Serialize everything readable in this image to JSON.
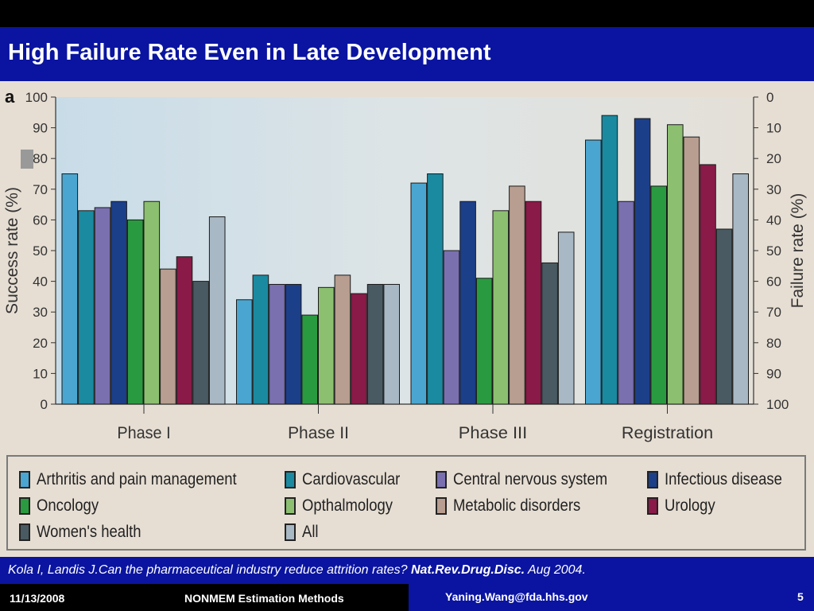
{
  "slide": {
    "title": "High Failure Rate Even in Late Development",
    "citation_text": "Kola I, Landis J.Can the pharmaceutical industry reduce attrition rates? ",
    "citation_journal": "Nat.Rev.Drug.Disc.",
    "citation_date": " Aug 2004.",
    "footer_date": "11/13/2008",
    "footer_title": "NONMEM Estimation Methods",
    "footer_email": "Yaning.Wang@fda.hhs.gov",
    "footer_page": "5"
  },
  "chart_data": {
    "type": "bar",
    "panel_label": "a",
    "ylabel": "Success rate (%)",
    "ylabel_right": "Failure rate (%)",
    "ylim": [
      0,
      100
    ],
    "yticks": [
      "0",
      "10",
      "20",
      "30",
      "40",
      "50",
      "60",
      "70",
      "80",
      "90",
      "100"
    ],
    "yticks_right": [
      "100",
      "90",
      "80",
      "70",
      "60",
      "50",
      "40",
      "30",
      "20",
      "10",
      "0"
    ],
    "categories": [
      "Phase I",
      "Phase II",
      "Phase III",
      "Registration"
    ],
    "legend_placement": "bottom",
    "series": [
      {
        "name": "Arthritis and pain management",
        "color": "#4aa6d0",
        "values": [
          75,
          34,
          72,
          86
        ]
      },
      {
        "name": "Cardiovascular",
        "color": "#1a8aa0",
        "values": [
          63,
          42,
          75,
          94
        ]
      },
      {
        "name": "Central nervous system",
        "color": "#7a70b0",
        "values": [
          64,
          39,
          50,
          66
        ]
      },
      {
        "name": "Infectious disease",
        "color": "#1c3f8a",
        "values": [
          66,
          39,
          66,
          93
        ]
      },
      {
        "name": "Oncology",
        "color": "#2a9a40",
        "values": [
          60,
          29,
          41,
          71
        ]
      },
      {
        "name": "Opthalmology",
        "color": "#8cc070",
        "values": [
          66,
          38,
          63,
          91
        ]
      },
      {
        "name": "Metabolic disorders",
        "color": "#b89e90",
        "values": [
          44,
          42,
          71,
          87
        ]
      },
      {
        "name": "Urology",
        "color": "#8a1a48",
        "values": [
          48,
          36,
          66,
          78
        ]
      },
      {
        "name": "Women's health",
        "color": "#4a5a62",
        "values": [
          40,
          39,
          46,
          57
        ]
      },
      {
        "name": "All",
        "color": "#a8b8c4",
        "values": [
          61,
          39,
          56,
          75
        ]
      }
    ]
  }
}
